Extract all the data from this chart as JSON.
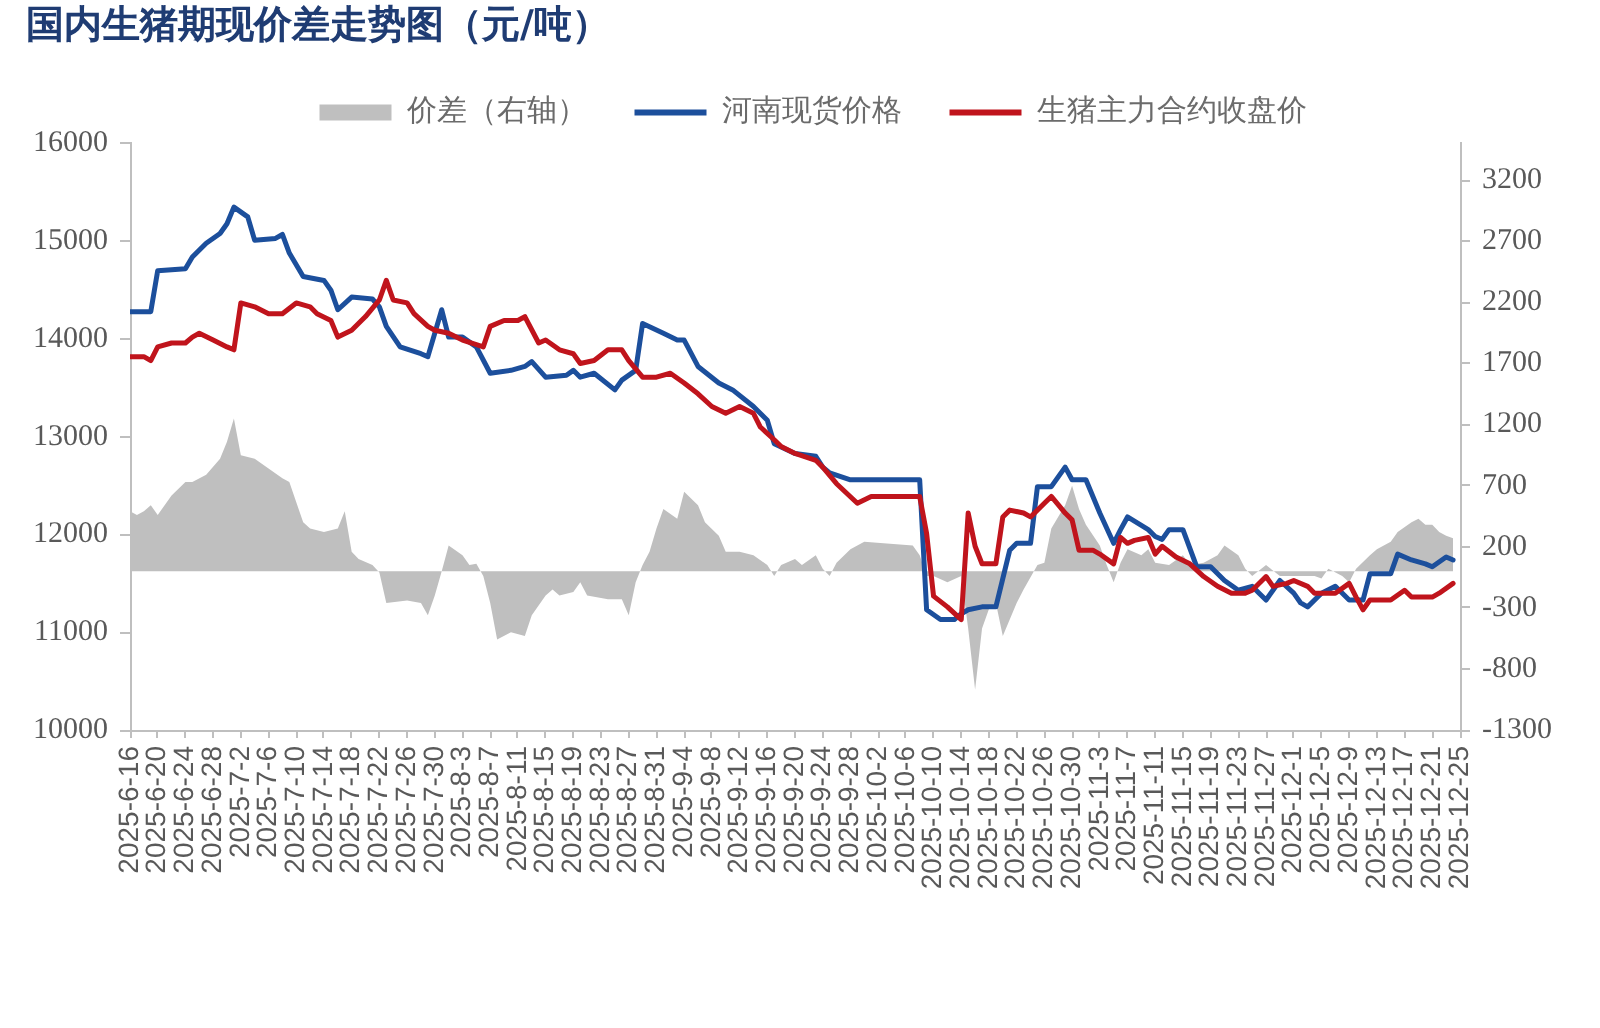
{
  "chart_data": {
    "type": "line",
    "title": "国内生猪期现价差走势图（元/吨）",
    "legend": "top",
    "xlim": [
      "2025-06-16",
      "2025-12-25"
    ],
    "xticks": [
      {
        "value": "2025-06-16",
        "label": "2025-6-16"
      },
      {
        "value": "2025-06-20",
        "label": "2025-6-20"
      },
      {
        "value": "2025-06-24",
        "label": "2025-6-24"
      },
      {
        "value": "2025-06-28",
        "label": "2025-6-28"
      },
      {
        "value": "2025-07-02",
        "label": "2025-7-2"
      },
      {
        "value": "2025-07-06",
        "label": "2025-7-6"
      },
      {
        "value": "2025-07-10",
        "label": "2025-7-10"
      },
      {
        "value": "2025-07-14",
        "label": "2025-7-14"
      },
      {
        "value": "2025-07-18",
        "label": "2025-7-18"
      },
      {
        "value": "2025-07-22",
        "label": "2025-7-22"
      },
      {
        "value": "2025-07-26",
        "label": "2025-7-26"
      },
      {
        "value": "2025-07-30",
        "label": "2025-7-30"
      },
      {
        "value": "2025-08-03",
        "label": "2025-8-3"
      },
      {
        "value": "2025-08-07",
        "label": "2025-8-7"
      },
      {
        "value": "2025-08-11",
        "label": "2025-8-11"
      },
      {
        "value": "2025-08-15",
        "label": "2025-8-15"
      },
      {
        "value": "2025-08-19",
        "label": "2025-8-19"
      },
      {
        "value": "2025-08-23",
        "label": "2025-8-23"
      },
      {
        "value": "2025-08-27",
        "label": "2025-8-27"
      },
      {
        "value": "2025-08-31",
        "label": "2025-8-31"
      },
      {
        "value": "2025-09-04",
        "label": "2025-9-4"
      },
      {
        "value": "2025-09-08",
        "label": "2025-9-8"
      },
      {
        "value": "2025-09-12",
        "label": "2025-9-12"
      },
      {
        "value": "2025-09-16",
        "label": "2025-9-16"
      },
      {
        "value": "2025-09-20",
        "label": "2025-9-20"
      },
      {
        "value": "2025-09-24",
        "label": "2025-9-24"
      },
      {
        "value": "2025-09-28",
        "label": "2025-9-28"
      },
      {
        "value": "2025-10-02",
        "label": "2025-10-2"
      },
      {
        "value": "2025-10-06",
        "label": "2025-10-6"
      },
      {
        "value": "2025-10-10",
        "label": "2025-10-10"
      },
      {
        "value": "2025-10-14",
        "label": "2025-10-14"
      },
      {
        "value": "2025-10-18",
        "label": "2025-10-18"
      },
      {
        "value": "2025-10-22",
        "label": "2025-10-22"
      },
      {
        "value": "2025-10-26",
        "label": "2025-10-26"
      },
      {
        "value": "2025-10-30",
        "label": "2025-10-30"
      },
      {
        "value": "2025-11-03",
        "label": "2025-11-3"
      },
      {
        "value": "2025-11-07",
        "label": "2025-11-7"
      },
      {
        "value": "2025-11-11",
        "label": "2025-11-11"
      },
      {
        "value": "2025-11-15",
        "label": "2025-11-15"
      },
      {
        "value": "2025-11-19",
        "label": "2025-11-19"
      },
      {
        "value": "2025-11-23",
        "label": "2025-11-23"
      },
      {
        "value": "2025-11-27",
        "label": "2025-11-27"
      },
      {
        "value": "2025-12-01",
        "label": "2025-12-1"
      },
      {
        "value": "2025-12-05",
        "label": "2025-12-5"
      },
      {
        "value": "2025-12-09",
        "label": "2025-12-9"
      },
      {
        "value": "2025-12-13",
        "label": "2025-12-13"
      },
      {
        "value": "2025-12-17",
        "label": "2025-12-17"
      },
      {
        "value": "2025-12-21",
        "label": "2025-12-21"
      },
      {
        "value": "2025-12-25",
        "label": "2025-12-25"
      }
    ],
    "ylim": [
      10000,
      16000
    ],
    "yticks": [
      10000,
      11000,
      12000,
      13000,
      14000,
      15000,
      16000
    ],
    "y2lim": [
      -1300,
      3500
    ],
    "y2ticks": [
      -1300,
      -800,
      -300,
      200,
      700,
      1200,
      1700,
      2200,
      2700,
      3200
    ],
    "series": [
      {
        "name": "价差（右轴）",
        "type": "area",
        "axis": "y2",
        "color": "#bfbfbf",
        "x": [
          "2025-06-16",
          "2025-06-17",
          "2025-06-18",
          "2025-06-19",
          "2025-06-20",
          "2025-06-22",
          "2025-06-24",
          "2025-06-25",
          "2025-06-27",
          "2025-06-29",
          "2025-06-30",
          "2025-07-01",
          "2025-07-02",
          "2025-07-04",
          "2025-07-06",
          "2025-07-08",
          "2025-07-09",
          "2025-07-11",
          "2025-07-12",
          "2025-07-14",
          "2025-07-16",
          "2025-07-17",
          "2025-07-18",
          "2025-07-19",
          "2025-07-21",
          "2025-07-22",
          "2025-07-23",
          "2025-07-26",
          "2025-07-28",
          "2025-07-29",
          "2025-07-30",
          "2025-07-31",
          "2025-08-01",
          "2025-08-03",
          "2025-08-04",
          "2025-08-05",
          "2025-08-06",
          "2025-08-07",
          "2025-08-08",
          "2025-08-10",
          "2025-08-12",
          "2025-08-13",
          "2025-08-15",
          "2025-08-16",
          "2025-08-17",
          "2025-08-19",
          "2025-08-20",
          "2025-08-21",
          "2025-08-24",
          "2025-08-26",
          "2025-08-27",
          "2025-08-28",
          "2025-08-29",
          "2025-08-30",
          "2025-08-31",
          "2025-09-01",
          "2025-09-03",
          "2025-09-04",
          "2025-09-06",
          "2025-09-07",
          "2025-09-09",
          "2025-09-10",
          "2025-09-12",
          "2025-09-14",
          "2025-09-16",
          "2025-09-17",
          "2025-09-18",
          "2025-09-20",
          "2025-09-21",
          "2025-09-23",
          "2025-09-24",
          "2025-09-25",
          "2025-09-26",
          "2025-09-28",
          "2025-09-30",
          "2025-10-07",
          "2025-10-08",
          "2025-10-09",
          "2025-10-10",
          "2025-10-12",
          "2025-10-14",
          "2025-10-15",
          "2025-10-16",
          "2025-10-17",
          "2025-10-18",
          "2025-10-19",
          "2025-10-20",
          "2025-10-22",
          "2025-10-23",
          "2025-10-25",
          "2025-10-26",
          "2025-10-27",
          "2025-10-29",
          "2025-10-30",
          "2025-10-31",
          "2025-11-01",
          "2025-11-03",
          "2025-11-04",
          "2025-11-05",
          "2025-11-06",
          "2025-11-07",
          "2025-11-09",
          "2025-11-10",
          "2025-11-11",
          "2025-11-13",
          "2025-11-15",
          "2025-11-16",
          "2025-11-18",
          "2025-11-20",
          "2025-11-21",
          "2025-11-23",
          "2025-11-24",
          "2025-11-25",
          "2025-11-27",
          "2025-11-29",
          "2025-12-01",
          "2025-12-04",
          "2025-12-05",
          "2025-12-06",
          "2025-12-08",
          "2025-12-09",
          "2025-12-10",
          "2025-12-12",
          "2025-12-13",
          "2025-12-15",
          "2025-12-16",
          "2025-12-18",
          "2025-12-19",
          "2025-12-20",
          "2025-12-21",
          "2025-12-22",
          "2025-12-23",
          "2025-12-24"
        ],
        "values": [
          490,
          460,
          490,
          540,
          460,
          620,
          730,
          730,
          790,
          920,
          1060,
          1250,
          950,
          920,
          840,
          760,
          730,
          400,
          350,
          320,
          350,
          490,
          160,
          100,
          50,
          -10,
          -260,
          -240,
          -260,
          -360,
          -200,
          0,
          210,
          130,
          50,
          60,
          -40,
          -260,
          -560,
          -500,
          -530,
          -360,
          -200,
          -150,
          -200,
          -170,
          -90,
          -200,
          -230,
          -230,
          -360,
          -90,
          50,
          160,
          350,
          510,
          430,
          650,
          540,
          400,
          290,
          160,
          160,
          130,
          50,
          -40,
          50,
          100,
          50,
          130,
          20,
          -40,
          70,
          180,
          240,
          210,
          130,
          -40,
          -40,
          -90,
          -40,
          -470,
          -970,
          -470,
          -310,
          -260,
          -530,
          -260,
          -150,
          50,
          70,
          350,
          540,
          700,
          510,
          380,
          210,
          50,
          -90,
          70,
          180,
          130,
          180,
          70,
          50,
          130,
          50,
          70,
          130,
          210,
          130,
          20,
          -40,
          50,
          -40,
          -40,
          -40,
          -60,
          20,
          -40,
          -90,
          20,
          130,
          180,
          240,
          320,
          400,
          430,
          380,
          380,
          320,
          290,
          270
        ]
      },
      {
        "name": "河南现货价格",
        "color": "#1c4f9c",
        "x": [
          "2025-06-16",
          "2025-06-19",
          "2025-06-20",
          "2025-06-24",
          "2025-06-25",
          "2025-06-27",
          "2025-06-29",
          "2025-06-30",
          "2025-07-01",
          "2025-07-03",
          "2025-07-04",
          "2025-07-07",
          "2025-07-08",
          "2025-07-09",
          "2025-07-11",
          "2025-07-14",
          "2025-07-15",
          "2025-07-16",
          "2025-07-18",
          "2025-07-21",
          "2025-07-22",
          "2025-07-23",
          "2025-07-25",
          "2025-07-28",
          "2025-07-29",
          "2025-07-31",
          "2025-08-01",
          "2025-08-03",
          "2025-08-05",
          "2025-08-07",
          "2025-08-10",
          "2025-08-12",
          "2025-08-13",
          "2025-08-15",
          "2025-08-18",
          "2025-08-19",
          "2025-08-20",
          "2025-08-22",
          "2025-08-25",
          "2025-08-26",
          "2025-08-28",
          "2025-08-29",
          "2025-09-01",
          "2025-09-03",
          "2025-09-04",
          "2025-09-06",
          "2025-09-09",
          "2025-09-11",
          "2025-09-14",
          "2025-09-16",
          "2025-09-17",
          "2025-09-20",
          "2025-09-23",
          "2025-09-24",
          "2025-09-25",
          "2025-09-28",
          "2025-10-08",
          "2025-10-09",
          "2025-10-11",
          "2025-10-13",
          "2025-10-14",
          "2025-10-15",
          "2025-10-17",
          "2025-10-19",
          "2025-10-21",
          "2025-10-22",
          "2025-10-24",
          "2025-10-25",
          "2025-10-27",
          "2025-10-29",
          "2025-10-30",
          "2025-11-01",
          "2025-11-03",
          "2025-11-05",
          "2025-11-06",
          "2025-11-07",
          "2025-11-10",
          "2025-11-11",
          "2025-11-12",
          "2025-11-13",
          "2025-11-15",
          "2025-11-17",
          "2025-11-19",
          "2025-11-21",
          "2025-11-23",
          "2025-11-25",
          "2025-11-26",
          "2025-11-27",
          "2025-11-29",
          "2025-12-01",
          "2025-12-02",
          "2025-12-03",
          "2025-12-05",
          "2025-12-07",
          "2025-12-09",
          "2025-12-11",
          "2025-12-12",
          "2025-12-15",
          "2025-12-16",
          "2025-12-18",
          "2025-12-20",
          "2025-12-21",
          "2025-12-23",
          "2025-12-24"
        ],
        "values": [
          14280,
          14280,
          14700,
          14720,
          14840,
          14980,
          15080,
          15180,
          15350,
          15250,
          15010,
          15030,
          15070,
          14880,
          14640,
          14600,
          14500,
          14300,
          14430,
          14410,
          14330,
          14130,
          13920,
          13850,
          13820,
          14300,
          14020,
          14020,
          13920,
          13650,
          13680,
          13720,
          13770,
          13610,
          13630,
          13680,
          13610,
          13650,
          13480,
          13580,
          13680,
          14160,
          14060,
          13990,
          13990,
          13720,
          13550,
          13480,
          13310,
          13170,
          12930,
          12830,
          12800,
          12690,
          12630,
          12560,
          12560,
          11230,
          11130,
          11130,
          11190,
          11230,
          11260,
          11260,
          11840,
          11910,
          11910,
          12490,
          12490,
          12690,
          12560,
          12560,
          12220,
          11910,
          12050,
          12180,
          12050,
          11980,
          11950,
          12050,
          12050,
          11670,
          11670,
          11530,
          11430,
          11470,
          11400,
          11330,
          11530,
          11400,
          11300,
          11260,
          11400,
          11470,
          11330,
          11330,
          11600,
          11600,
          11800,
          11740,
          11700,
          11670,
          11770,
          11740
        ]
      },
      {
        "name": "生猪主力合约收盘价",
        "color": "#c0141c",
        "x": [
          "2025-06-16",
          "2025-06-18",
          "2025-06-19",
          "2025-06-20",
          "2025-06-22",
          "2025-06-24",
          "2025-06-25",
          "2025-06-26",
          "2025-06-28",
          "2025-06-30",
          "2025-07-01",
          "2025-07-02",
          "2025-07-04",
          "2025-07-06",
          "2025-07-08",
          "2025-07-10",
          "2025-07-12",
          "2025-07-13",
          "2025-07-15",
          "2025-07-16",
          "2025-07-18",
          "2025-07-20",
          "2025-07-22",
          "2025-07-23",
          "2025-07-24",
          "2025-07-26",
          "2025-07-27",
          "2025-07-29",
          "2025-07-30",
          "2025-08-01",
          "2025-08-03",
          "2025-08-06",
          "2025-08-07",
          "2025-08-09",
          "2025-08-11",
          "2025-08-12",
          "2025-08-14",
          "2025-08-15",
          "2025-08-17",
          "2025-08-19",
          "2025-08-20",
          "2025-08-22",
          "2025-08-24",
          "2025-08-26",
          "2025-08-27",
          "2025-08-29",
          "2025-08-31",
          "2025-09-02",
          "2025-09-04",
          "2025-09-06",
          "2025-09-08",
          "2025-09-10",
          "2025-09-12",
          "2025-09-14",
          "2025-09-15",
          "2025-09-17",
          "2025-09-18",
          "2025-09-20",
          "2025-09-23",
          "2025-09-24",
          "2025-09-26",
          "2025-09-29",
          "2025-10-01",
          "2025-10-08",
          "2025-10-09",
          "2025-10-10",
          "2025-10-12",
          "2025-10-14",
          "2025-10-15",
          "2025-10-16",
          "2025-10-17",
          "2025-10-19",
          "2025-10-20",
          "2025-10-21",
          "2025-10-23",
          "2025-10-24",
          "2025-10-26",
          "2025-10-27",
          "2025-10-29",
          "2025-10-30",
          "2025-10-31",
          "2025-11-02",
          "2025-11-03",
          "2025-11-05",
          "2025-11-06",
          "2025-11-07",
          "2025-11-08",
          "2025-11-10",
          "2025-11-11",
          "2025-11-12",
          "2025-11-14",
          "2025-11-16",
          "2025-11-18",
          "2025-11-20",
          "2025-11-22",
          "2025-11-24",
          "2025-11-25",
          "2025-11-27",
          "2025-11-28",
          "2025-11-30",
          "2025-12-01",
          "2025-12-03",
          "2025-12-04",
          "2025-12-07",
          "2025-12-09",
          "2025-12-10",
          "2025-12-11",
          "2025-12-12",
          "2025-12-15",
          "2025-12-17",
          "2025-12-18",
          "2025-12-21",
          "2025-12-22",
          "2025-12-24"
        ],
        "values": [
          13820,
          13820,
          13780,
          13920,
          13960,
          13960,
          14020,
          14060,
          13990,
          13920,
          13890,
          14370,
          14330,
          14260,
          14260,
          14370,
          14330,
          14260,
          14190,
          14020,
          14090,
          14230,
          14400,
          14600,
          14400,
          14370,
          14260,
          14130,
          14090,
          14060,
          13990,
          13920,
          14130,
          14190,
          14190,
          14230,
          13960,
          13990,
          13890,
          13850,
          13750,
          13780,
          13890,
          13890,
          13780,
          13610,
          13610,
          13650,
          13550,
          13440,
          13310,
          13240,
          13310,
          13240,
          13100,
          12970,
          12900,
          12830,
          12760,
          12690,
          12520,
          12320,
          12390,
          12390,
          12010,
          11370,
          11260,
          11130,
          12220,
          11880,
          11700,
          11700,
          12180,
          12250,
          12220,
          12180,
          12320,
          12390,
          12220,
          12150,
          11840,
          11840,
          11800,
          11700,
          11970,
          11910,
          11940,
          11970,
          11800,
          11880,
          11770,
          11700,
          11570,
          11470,
          11400,
          11400,
          11430,
          11570,
          11470,
          11500,
          11530,
          11470,
          11400,
          11400,
          11500,
          11360,
          11230,
          11330,
          11330,
          11430,
          11360,
          11360,
          11400,
          11500
        ]
      }
    ]
  }
}
